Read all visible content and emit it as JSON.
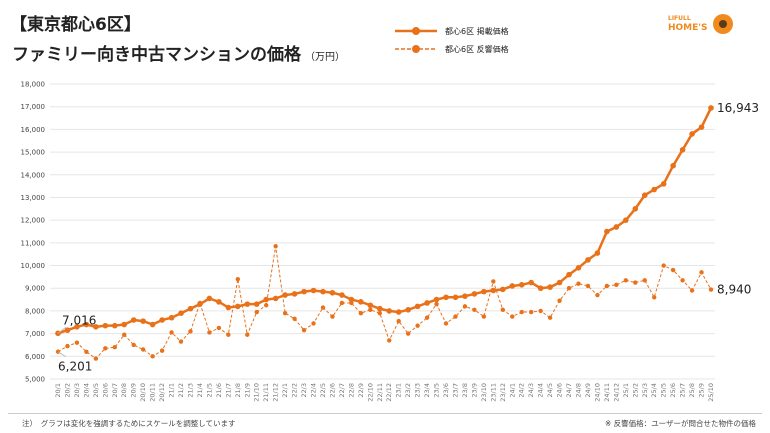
{
  "header": {
    "title_line1": "【東京都心6区】",
    "title_line2": "ファミリー向き中古マンションの価格",
    "unit": "（万円）"
  },
  "legend": {
    "series1": "都心6区 掲載価格",
    "series2": "都心6区 反響価格"
  },
  "logo": {
    "top": "LIFULL",
    "bottom": "HOME'S"
  },
  "footer": {
    "note_left": "注）　グラフは変化を強調するためにスケールを調整しています",
    "note_right": "※ 反響価格：ユーザーが問合せた物件の価格"
  },
  "chart_data": {
    "type": "line",
    "title": "【東京都心6区】ファミリー向き中古マンションの価格（万円）",
    "ylim": [
      5000,
      18000
    ],
    "yticks": [
      "5,000",
      "6,000",
      "7,000",
      "8,000",
      "9,000",
      "10,000",
      "11,000",
      "12,000",
      "13,000",
      "14,000",
      "15,000",
      "16,000",
      "17,000",
      "18,000"
    ],
    "grid": true,
    "legend_position": "top-center",
    "categories": [
      "20/1",
      "20/2",
      "20/3",
      "20/4",
      "20/5",
      "20/6",
      "20/7",
      "20/8",
      "20/9",
      "20/10",
      "20/11",
      "20/12",
      "21/1",
      "21/2",
      "21/3",
      "21/4",
      "21/5",
      "21/6",
      "21/7",
      "21/8",
      "21/9",
      "21/10",
      "21/11",
      "21/12",
      "22/1",
      "22/2",
      "22/3",
      "22/4",
      "22/5",
      "22/6",
      "22/7",
      "22/8",
      "22/9",
      "22/10",
      "22/11",
      "22/12",
      "23/1",
      "23/2",
      "23/3",
      "23/4",
      "23/5",
      "23/6",
      "23/7",
      "23/8",
      "23/9",
      "23/10",
      "23/11",
      "23/12",
      "24/1",
      "24/2",
      "24/3",
      "24/4",
      "24/5",
      "24/6",
      "24/7",
      "24/8",
      "24/9",
      "24/10",
      "24/11",
      "24/12",
      "25/1",
      "25/2",
      "25/3",
      "25/4",
      "25/5",
      "25/6",
      "25/7",
      "25/8",
      "25/9",
      "25/10"
    ],
    "series": [
      {
        "name": "都心6区 掲載価格",
        "style": "solid",
        "color": "#e8711a",
        "values": [
          7016,
          7150,
          7300,
          7400,
          7300,
          7350,
          7350,
          7400,
          7600,
          7550,
          7400,
          7600,
          7700,
          7900,
          8100,
          8300,
          8550,
          8400,
          8150,
          8200,
          8300,
          8300,
          8500,
          8550,
          8700,
          8750,
          8850,
          8900,
          8850,
          8800,
          8700,
          8500,
          8400,
          8250,
          8100,
          8000,
          7950,
          8050,
          8200,
          8350,
          8500,
          8600,
          8600,
          8650,
          8750,
          8850,
          8900,
          8950,
          9100,
          9150,
          9250,
          9000,
          9050,
          9250,
          9600,
          9900,
          10250,
          10550,
          11500,
          11700,
          12000,
          12500,
          13100,
          13350,
          13600,
          14400,
          15100,
          15800,
          16100,
          16943
        ],
        "first_label": "7,016",
        "last_label": "16,943"
      },
      {
        "name": "都心6区 反響価格",
        "style": "dashed",
        "color": "#e8711a",
        "values": [
          6201,
          6450,
          6600,
          6200,
          5900,
          6350,
          6400,
          6950,
          6500,
          6300,
          6000,
          6250,
          7050,
          6650,
          7100,
          8350,
          7050,
          7250,
          6950,
          9400,
          6950,
          7950,
          8250,
          10850,
          7900,
          7650,
          7150,
          7450,
          8150,
          7750,
          8350,
          8350,
          7900,
          8050,
          7900,
          6700,
          7550,
          7000,
          7350,
          7700,
          8300,
          7450,
          7750,
          8200,
          8050,
          7750,
          9300,
          8050,
          7750,
          7950,
          7950,
          8000,
          7700,
          8450,
          9000,
          9200,
          9100,
          8700,
          9100,
          9150,
          9350,
          9250,
          9350,
          8600,
          10000,
          9800,
          9350,
          8900,
          9700,
          8940
        ],
        "first_label": "6,201",
        "last_label": "8,940"
      }
    ]
  }
}
